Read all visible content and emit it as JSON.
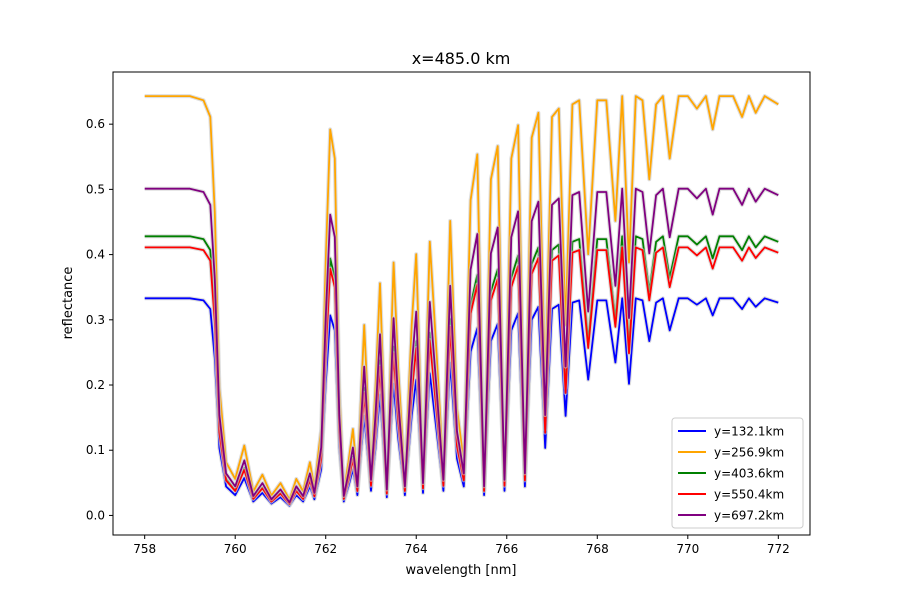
{
  "chart_data": {
    "type": "line",
    "title": "x=485.0 km",
    "xlabel": "wavelength [nm]",
    "ylabel": "reflectance",
    "xlim": [
      757.3,
      772.7
    ],
    "ylim": [
      -0.03,
      0.68
    ],
    "xticks": [
      758,
      760,
      762,
      764,
      766,
      768,
      770,
      772
    ],
    "yticks": [
      0.0,
      0.1,
      0.2,
      0.3,
      0.4,
      0.5,
      0.6
    ],
    "xtick_labels": [
      "758",
      "760",
      "762",
      "764",
      "766",
      "768",
      "770",
      "772"
    ],
    "ytick_labels": [
      "0.0",
      "0.1",
      "0.2",
      "0.3",
      "0.4",
      "0.5",
      "0.6"
    ],
    "grid": false,
    "legend_position": "lower-right",
    "shared_profile": {
      "x": [
        758.0,
        759.0,
        759.3,
        759.45,
        759.55,
        759.65,
        759.8,
        760.0,
        760.2,
        760.4,
        760.6,
        760.8,
        761.0,
        761.2,
        761.35,
        761.5,
        761.65,
        761.75,
        761.9,
        762.0,
        762.1,
        762.2,
        762.3,
        762.4,
        762.5,
        762.6,
        762.7,
        762.85,
        763.0,
        763.1,
        763.2,
        763.35,
        763.5,
        763.6,
        763.75,
        763.9,
        764.0,
        764.15,
        764.3,
        764.45,
        764.6,
        764.75,
        764.9,
        765.05,
        765.2,
        765.35,
        765.5,
        765.65,
        765.8,
        765.95,
        766.1,
        766.25,
        766.4,
        766.55,
        766.7,
        766.85,
        767.0,
        767.15,
        767.3,
        767.45,
        767.6,
        767.8,
        768.0,
        768.2,
        768.4,
        768.55,
        768.7,
        768.85,
        769.0,
        769.15,
        769.3,
        769.45,
        769.6,
        769.8,
        770.0,
        770.2,
        770.4,
        770.55,
        770.7,
        771.0,
        771.2,
        771.35,
        771.5,
        771.7,
        772.0
      ],
      "shape": [
        1.0,
        1.0,
        0.99,
        0.95,
        0.72,
        0.3,
        0.12,
        0.08,
        0.16,
        0.05,
        0.09,
        0.04,
        0.07,
        0.03,
        0.08,
        0.05,
        0.12,
        0.06,
        0.2,
        0.6,
        0.92,
        0.85,
        0.3,
        0.05,
        0.12,
        0.2,
        0.08,
        0.45,
        0.1,
        0.3,
        0.55,
        0.07,
        0.6,
        0.35,
        0.08,
        0.45,
        0.62,
        0.09,
        0.65,
        0.38,
        0.1,
        0.7,
        0.25,
        0.12,
        0.75,
        0.86,
        0.08,
        0.8,
        0.88,
        0.1,
        0.85,
        0.93,
        0.12,
        0.9,
        0.96,
        0.3,
        0.95,
        0.97,
        0.45,
        0.98,
        0.99,
        0.62,
        0.99,
        0.99,
        0.7,
        1.0,
        0.6,
        1.0,
        0.99,
        0.8,
        0.98,
        1.0,
        0.85,
        1.0,
        1.0,
        0.97,
        1.0,
        0.92,
        1.0,
        1.0,
        0.95,
        1.0,
        0.96,
        1.0,
        0.98
      ]
    },
    "series": [
      {
        "name": "y=132.1km",
        "color": "#0000ff",
        "baseline": 0.333
      },
      {
        "name": "y=256.9km",
        "color": "#ffa500",
        "baseline": 0.643
      },
      {
        "name": "y=403.6km",
        "color": "#008000",
        "baseline": 0.428
      },
      {
        "name": "y=550.4km",
        "color": "#ff0000",
        "baseline": 0.411
      },
      {
        "name": "y=697.2km",
        "color": "#800080",
        "baseline": 0.501
      }
    ]
  }
}
